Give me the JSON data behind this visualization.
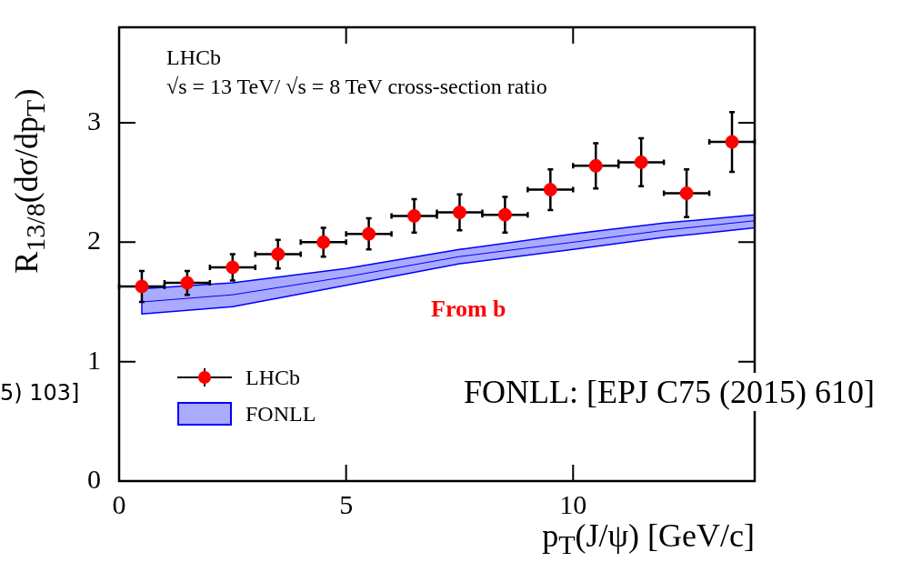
{
  "chart_data": {
    "type": "scatter",
    "xlabel": "p$_{T}$(J/ψ) [GeV/c]",
    "ylabel": "R$_{13/8}$(dσ/dp$_{T}$)",
    "xlim": [
      0,
      14
    ],
    "ylim": [
      0,
      3.8
    ],
    "xticks": [
      0,
      5,
      10
    ],
    "yticks": [
      0,
      1,
      2,
      3
    ],
    "grid": false,
    "legend": "bottom left",
    "marker": "circle",
    "series": [
      {
        "name": "LHCb",
        "color": "#ff0000",
        "x": [
          0.5,
          1.5,
          2.5,
          3.5,
          4.5,
          5.5,
          6.5,
          7.5,
          8.5,
          9.5,
          10.5,
          11.5,
          12.5,
          13.5
        ],
        "values": [
          1.63,
          1.66,
          1.79,
          1.9,
          2.0,
          2.07,
          2.22,
          2.25,
          2.23,
          2.44,
          2.64,
          2.67,
          2.41,
          2.84
        ],
        "errors": [
          0.13,
          0.1,
          0.11,
          0.12,
          0.12,
          0.13,
          0.14,
          0.15,
          0.15,
          0.17,
          0.19,
          0.2,
          0.2,
          0.25
        ],
        "xerrors": [
          0.5,
          0.5,
          0.5,
          0.5,
          0.5,
          0.5,
          0.5,
          0.5,
          0.5,
          0.5,
          0.5,
          0.5,
          0.5,
          0.5
        ]
      },
      {
        "name": "FONLL",
        "type": "line",
        "marker": "none",
        "color": "#0000ff",
        "x": [
          0.5,
          2.5,
          5,
          7.5,
          10,
          12,
          14
        ],
        "values": [
          1.5,
          1.56,
          1.71,
          1.88,
          2.0,
          2.1,
          2.18
        ],
        "lower": [
          1.4,
          1.46,
          1.64,
          1.82,
          1.94,
          2.04,
          2.12
        ],
        "upper": [
          1.61,
          1.66,
          1.78,
          1.94,
          2.07,
          2.16,
          2.23
        ]
      }
    ],
    "annotations": [
      "LHCb",
      "√s = 13 TeV/ √s = 8 TeV cross-section ratio",
      "From b",
      "FONLL: [EPJ C75 (2015) 610]",
      "5) 103]"
    ]
  }
}
